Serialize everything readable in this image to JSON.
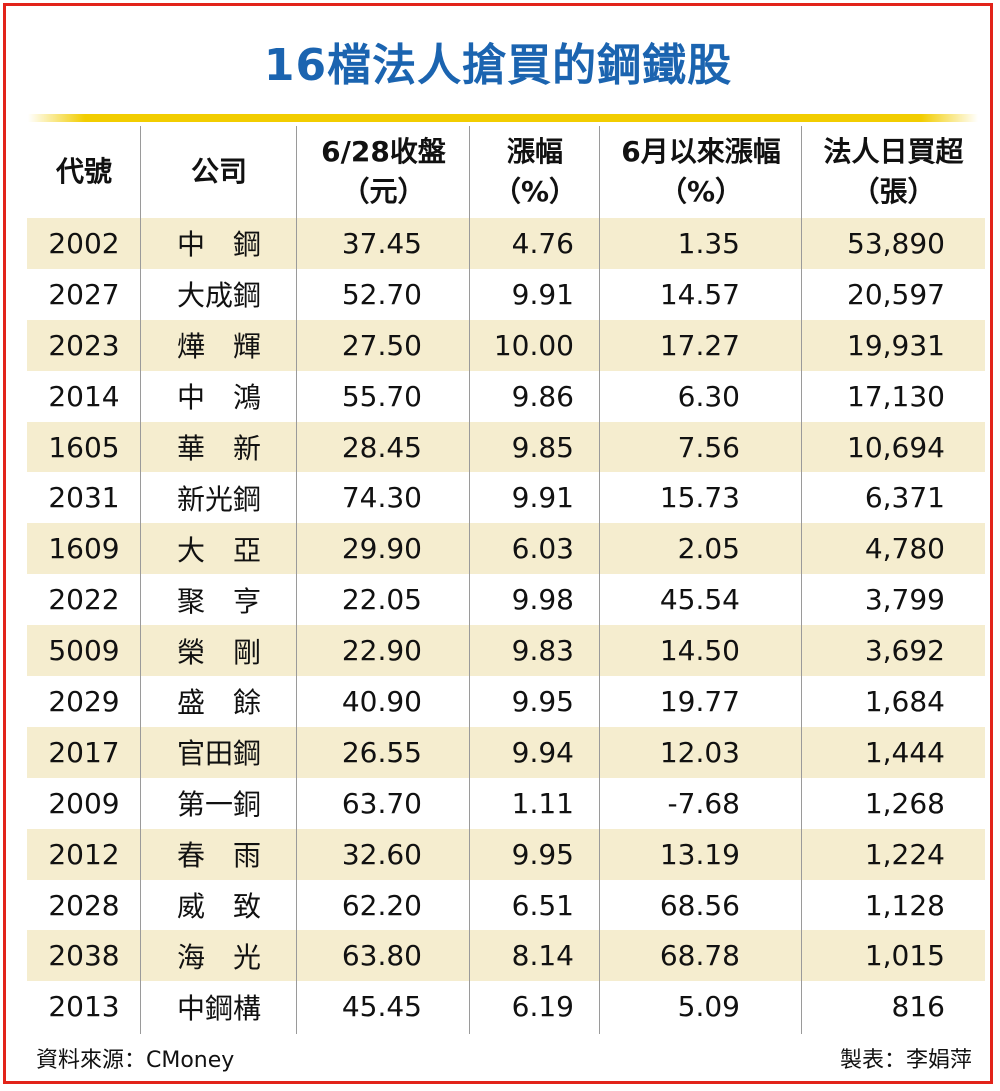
{
  "title": "16檔法人搶買的鋼鐵股",
  "chart_data": {
    "type": "table",
    "columns": [
      {
        "line1": "代號",
        "line2": ""
      },
      {
        "line1": "公司",
        "line2": ""
      },
      {
        "line1": "6/28收盤",
        "line2": "（元）"
      },
      {
        "line1": "漲幅",
        "line2": "（%）"
      },
      {
        "line1": "6月以來漲幅",
        "line2": "（%）"
      },
      {
        "line1": "法人日買超",
        "line2": "（張）"
      }
    ],
    "rows": [
      {
        "code": "2002",
        "company": "中　鋼",
        "close": "37.45",
        "change": "4.76",
        "since_june": "1.35",
        "net_buy": "53,890"
      },
      {
        "code": "2027",
        "company": "大成鋼",
        "close": "52.70",
        "change": "9.91",
        "since_june": "14.57",
        "net_buy": "20,597"
      },
      {
        "code": "2023",
        "company": "燁　輝",
        "close": "27.50",
        "change": "10.00",
        "since_june": "17.27",
        "net_buy": "19,931"
      },
      {
        "code": "2014",
        "company": "中　鴻",
        "close": "55.70",
        "change": "9.86",
        "since_june": "6.30",
        "net_buy": "17,130"
      },
      {
        "code": "1605",
        "company": "華　新",
        "close": "28.45",
        "change": "9.85",
        "since_june": "7.56",
        "net_buy": "10,694"
      },
      {
        "code": "2031",
        "company": "新光鋼",
        "close": "74.30",
        "change": "9.91",
        "since_june": "15.73",
        "net_buy": "6,371"
      },
      {
        "code": "1609",
        "company": "大　亞",
        "close": "29.90",
        "change": "6.03",
        "since_june": "2.05",
        "net_buy": "4,780"
      },
      {
        "code": "2022",
        "company": "聚　亨",
        "close": "22.05",
        "change": "9.98",
        "since_june": "45.54",
        "net_buy": "3,799"
      },
      {
        "code": "5009",
        "company": "榮　剛",
        "close": "22.90",
        "change": "9.83",
        "since_june": "14.50",
        "net_buy": "3,692"
      },
      {
        "code": "2029",
        "company": "盛　餘",
        "close": "40.90",
        "change": "9.95",
        "since_june": "19.77",
        "net_buy": "1,684"
      },
      {
        "code": "2017",
        "company": "官田鋼",
        "close": "26.55",
        "change": "9.94",
        "since_june": "12.03",
        "net_buy": "1,444"
      },
      {
        "code": "2009",
        "company": "第一銅",
        "close": "63.70",
        "change": "1.11",
        "since_june": "-7.68",
        "net_buy": "1,268"
      },
      {
        "code": "2012",
        "company": "春　雨",
        "close": "32.60",
        "change": "9.95",
        "since_june": "13.19",
        "net_buy": "1,224"
      },
      {
        "code": "2028",
        "company": "威　致",
        "close": "62.20",
        "change": "6.51",
        "since_june": "68.56",
        "net_buy": "1,128"
      },
      {
        "code": "2038",
        "company": "海　光",
        "close": "63.80",
        "change": "8.14",
        "since_june": "68.78",
        "net_buy": "1,015"
      },
      {
        "code": "2013",
        "company": "中鋼構",
        "close": "45.45",
        "change": "6.19",
        "since_june": "5.09",
        "net_buy": "816"
      }
    ]
  },
  "footer": {
    "source": "資料來源：CMoney",
    "maker": "製表：李娟萍"
  },
  "colors": {
    "title": "#1b64b0",
    "frame": "#e2231a",
    "rule": "#f2cd00",
    "row_shade": "#f5edcf"
  }
}
